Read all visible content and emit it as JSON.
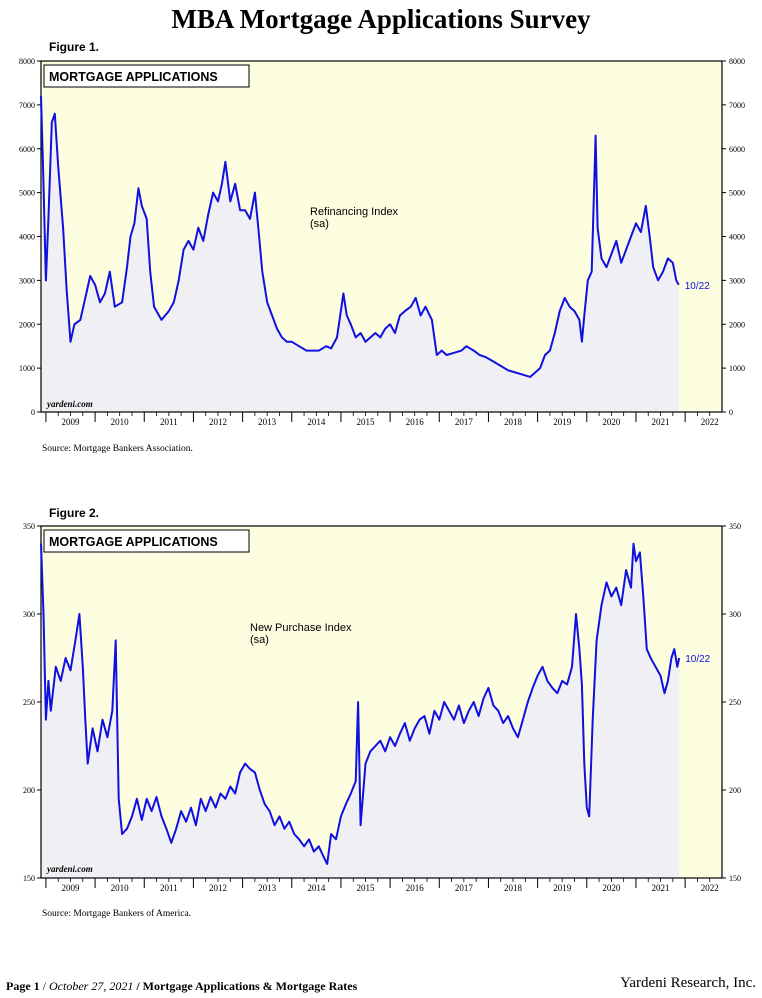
{
  "page_title": "MBA Mortgage Applications Survey",
  "footer": {
    "page": "Page 1",
    "date": "October 27, 2021",
    "doc_title": "Mortgage Applications & Mortgage Rates",
    "company": "Yardeni Research, Inc."
  },
  "colors": {
    "line": "#1010e0",
    "plot_bg": "#fdfde0",
    "hist_fill": "#f0f0f4"
  },
  "chart_data": [
    {
      "type": "line",
      "figure_label": "Figure 1.",
      "box_title": "MORTGAGE APPLICATIONS",
      "series_label": "Refinancing Index",
      "series_sub": "(sa)",
      "end_label": "10/22",
      "watermark": "yardeni.com",
      "source": "Source:  Mortgage Bankers Association.",
      "x_range": [
        2008.9,
        2022.75
      ],
      "ylim": [
        0,
        8000
      ],
      "yticks": [
        "0",
        "1000",
        "2000",
        "3000",
        "4000",
        "5000",
        "6000",
        "7000",
        "8000"
      ],
      "xticks": [
        "2009",
        "2010",
        "2011",
        "2012",
        "2013",
        "2014",
        "2015",
        "2016",
        "2017",
        "2018",
        "2019",
        "2020",
        "2021",
        "2022"
      ],
      "points": [
        [
          2008.9,
          7200
        ],
        [
          2008.95,
          5200
        ],
        [
          2009.0,
          3000
        ],
        [
          2009.05,
          4400
        ],
        [
          2009.12,
          6600
        ],
        [
          2009.18,
          6800
        ],
        [
          2009.25,
          5600
        ],
        [
          2009.35,
          4200
        ],
        [
          2009.42,
          2800
        ],
        [
          2009.5,
          1600
        ],
        [
          2009.58,
          2000
        ],
        [
          2009.7,
          2100
        ],
        [
          2009.8,
          2600
        ],
        [
          2009.9,
          3100
        ],
        [
          2010.0,
          2900
        ],
        [
          2010.1,
          2500
        ],
        [
          2010.2,
          2700
        ],
        [
          2010.3,
          3200
        ],
        [
          2010.4,
          2400
        ],
        [
          2010.55,
          2500
        ],
        [
          2010.65,
          3300
        ],
        [
          2010.72,
          4000
        ],
        [
          2010.8,
          4300
        ],
        [
          2010.88,
          5100
        ],
        [
          2010.95,
          4700
        ],
        [
          2011.05,
          4400
        ],
        [
          2011.12,
          3200
        ],
        [
          2011.2,
          2400
        ],
        [
          2011.35,
          2100
        ],
        [
          2011.5,
          2300
        ],
        [
          2011.6,
          2500
        ],
        [
          2011.7,
          3000
        ],
        [
          2011.8,
          3700
        ],
        [
          2011.9,
          3900
        ],
        [
          2012.0,
          3700
        ],
        [
          2012.1,
          4200
        ],
        [
          2012.2,
          3900
        ],
        [
          2012.3,
          4500
        ],
        [
          2012.4,
          5000
        ],
        [
          2012.5,
          4800
        ],
        [
          2012.58,
          5200
        ],
        [
          2012.65,
          5700
        ],
        [
          2012.75,
          4800
        ],
        [
          2012.85,
          5200
        ],
        [
          2012.95,
          4600
        ],
        [
          2013.05,
          4600
        ],
        [
          2013.15,
          4400
        ],
        [
          2013.25,
          5000
        ],
        [
          2013.32,
          4200
        ],
        [
          2013.4,
          3200
        ],
        [
          2013.5,
          2500
        ],
        [
          2013.6,
          2200
        ],
        [
          2013.7,
          1900
        ],
        [
          2013.8,
          1700
        ],
        [
          2013.9,
          1600
        ],
        [
          2014.0,
          1600
        ],
        [
          2014.15,
          1500
        ],
        [
          2014.3,
          1400
        ],
        [
          2014.45,
          1400
        ],
        [
          2014.55,
          1400
        ],
        [
          2014.7,
          1500
        ],
        [
          2014.8,
          1450
        ],
        [
          2014.92,
          1700
        ],
        [
          2015.05,
          2700
        ],
        [
          2015.12,
          2200
        ],
        [
          2015.2,
          2000
        ],
        [
          2015.3,
          1700
        ],
        [
          2015.4,
          1800
        ],
        [
          2015.5,
          1600
        ],
        [
          2015.6,
          1700
        ],
        [
          2015.7,
          1800
        ],
        [
          2015.8,
          1700
        ],
        [
          2015.9,
          1900
        ],
        [
          2016.0,
          2000
        ],
        [
          2016.1,
          1800
        ],
        [
          2016.2,
          2200
        ],
        [
          2016.3,
          2300
        ],
        [
          2016.42,
          2400
        ],
        [
          2016.52,
          2600
        ],
        [
          2016.62,
          2200
        ],
        [
          2016.72,
          2400
        ],
        [
          2016.85,
          2100
        ],
        [
          2016.95,
          1300
        ],
        [
          2017.05,
          1400
        ],
        [
          2017.15,
          1300
        ],
        [
          2017.3,
          1350
        ],
        [
          2017.45,
          1400
        ],
        [
          2017.55,
          1500
        ],
        [
          2017.7,
          1400
        ],
        [
          2017.82,
          1300
        ],
        [
          2017.95,
          1250
        ],
        [
          2018.1,
          1150
        ],
        [
          2018.25,
          1050
        ],
        [
          2018.4,
          950
        ],
        [
          2018.55,
          900
        ],
        [
          2018.7,
          850
        ],
        [
          2018.85,
          800
        ],
        [
          2018.95,
          900
        ],
        [
          2019.05,
          1000
        ],
        [
          2019.15,
          1300
        ],
        [
          2019.25,
          1400
        ],
        [
          2019.35,
          1800
        ],
        [
          2019.45,
          2300
        ],
        [
          2019.55,
          2600
        ],
        [
          2019.65,
          2400
        ],
        [
          2019.75,
          2300
        ],
        [
          2019.85,
          2100
        ],
        [
          2019.9,
          1600
        ],
        [
          2019.95,
          2200
        ],
        [
          2020.02,
          3000
        ],
        [
          2020.1,
          3200
        ],
        [
          2020.18,
          6300
        ],
        [
          2020.22,
          4200
        ],
        [
          2020.3,
          3500
        ],
        [
          2020.4,
          3300
        ],
        [
          2020.5,
          3600
        ],
        [
          2020.6,
          3900
        ],
        [
          2020.7,
          3400
        ],
        [
          2020.8,
          3700
        ],
        [
          2020.9,
          4000
        ],
        [
          2021.0,
          4300
        ],
        [
          2021.1,
          4100
        ],
        [
          2021.2,
          4700
        ],
        [
          2021.28,
          4000
        ],
        [
          2021.35,
          3300
        ],
        [
          2021.45,
          3000
        ],
        [
          2021.55,
          3200
        ],
        [
          2021.65,
          3500
        ],
        [
          2021.75,
          3400
        ],
        [
          2021.82,
          3000
        ],
        [
          2021.87,
          2900
        ]
      ]
    },
    {
      "type": "line",
      "figure_label": "Figure 2.",
      "box_title": "MORTGAGE APPLICATIONS",
      "series_label": "New Purchase Index",
      "series_sub": "(sa)",
      "end_label": "10/22",
      "watermark": "yardeni.com",
      "source": "Source: Mortgage Bankers of America.",
      "x_range": [
        2008.9,
        2022.75
      ],
      "ylim": [
        150,
        350
      ],
      "yticks": [
        "150",
        "200",
        "250",
        "300",
        "350"
      ],
      "xticks": [
        "2009",
        "2010",
        "2011",
        "2012",
        "2013",
        "2014",
        "2015",
        "2016",
        "2017",
        "2018",
        "2019",
        "2020",
        "2021",
        "2022"
      ],
      "points": [
        [
          2008.9,
          340
        ],
        [
          2008.95,
          300
        ],
        [
          2009.0,
          240
        ],
        [
          2009.05,
          262
        ],
        [
          2009.1,
          245
        ],
        [
          2009.2,
          270
        ],
        [
          2009.3,
          262
        ],
        [
          2009.4,
          275
        ],
        [
          2009.5,
          268
        ],
        [
          2009.6,
          285
        ],
        [
          2009.68,
          300
        ],
        [
          2009.75,
          270
        ],
        [
          2009.8,
          240
        ],
        [
          2009.85,
          215
        ],
        [
          2009.95,
          235
        ],
        [
          2010.05,
          222
        ],
        [
          2010.15,
          240
        ],
        [
          2010.25,
          230
        ],
        [
          2010.35,
          245
        ],
        [
          2010.42,
          285
        ],
        [
          2010.48,
          195
        ],
        [
          2010.55,
          175
        ],
        [
          2010.65,
          178
        ],
        [
          2010.75,
          185
        ],
        [
          2010.85,
          195
        ],
        [
          2010.95,
          183
        ],
        [
          2011.05,
          195
        ],
        [
          2011.15,
          188
        ],
        [
          2011.25,
          196
        ],
        [
          2011.35,
          185
        ],
        [
          2011.45,
          178
        ],
        [
          2011.55,
          170
        ],
        [
          2011.65,
          178
        ],
        [
          2011.75,
          188
        ],
        [
          2011.85,
          182
        ],
        [
          2011.95,
          190
        ],
        [
          2012.05,
          180
        ],
        [
          2012.15,
          195
        ],
        [
          2012.25,
          188
        ],
        [
          2012.35,
          196
        ],
        [
          2012.45,
          190
        ],
        [
          2012.55,
          198
        ],
        [
          2012.65,
          195
        ],
        [
          2012.75,
          202
        ],
        [
          2012.85,
          198
        ],
        [
          2012.95,
          210
        ],
        [
          2013.05,
          215
        ],
        [
          2013.15,
          212
        ],
        [
          2013.25,
          210
        ],
        [
          2013.35,
          200
        ],
        [
          2013.45,
          192
        ],
        [
          2013.55,
          188
        ],
        [
          2013.65,
          180
        ],
        [
          2013.75,
          185
        ],
        [
          2013.85,
          178
        ],
        [
          2013.95,
          182
        ],
        [
          2014.05,
          175
        ],
        [
          2014.15,
          172
        ],
        [
          2014.25,
          168
        ],
        [
          2014.35,
          172
        ],
        [
          2014.45,
          165
        ],
        [
          2014.55,
          168
        ],
        [
          2014.65,
          162
        ],
        [
          2014.72,
          158
        ],
        [
          2014.8,
          175
        ],
        [
          2014.9,
          172
        ],
        [
          2015.0,
          185
        ],
        [
          2015.1,
          192
        ],
        [
          2015.2,
          198
        ],
        [
          2015.3,
          205
        ],
        [
          2015.35,
          250
        ],
        [
          2015.4,
          180
        ],
        [
          2015.5,
          215
        ],
        [
          2015.6,
          222
        ],
        [
          2015.7,
          225
        ],
        [
          2015.8,
          228
        ],
        [
          2015.9,
          222
        ],
        [
          2016.0,
          230
        ],
        [
          2016.1,
          225
        ],
        [
          2016.2,
          232
        ],
        [
          2016.3,
          238
        ],
        [
          2016.4,
          228
        ],
        [
          2016.5,
          235
        ],
        [
          2016.6,
          240
        ],
        [
          2016.7,
          242
        ],
        [
          2016.8,
          232
        ],
        [
          2016.9,
          245
        ],
        [
          2017.0,
          240
        ],
        [
          2017.1,
          250
        ],
        [
          2017.2,
          245
        ],
        [
          2017.3,
          240
        ],
        [
          2017.4,
          248
        ],
        [
          2017.5,
          238
        ],
        [
          2017.6,
          245
        ],
        [
          2017.7,
          250
        ],
        [
          2017.8,
          242
        ],
        [
          2017.9,
          252
        ],
        [
          2018.0,
          258
        ],
        [
          2018.1,
          248
        ],
        [
          2018.2,
          245
        ],
        [
          2018.3,
          238
        ],
        [
          2018.4,
          242
        ],
        [
          2018.5,
          235
        ],
        [
          2018.6,
          230
        ],
        [
          2018.7,
          240
        ],
        [
          2018.8,
          250
        ],
        [
          2018.9,
          258
        ],
        [
          2019.0,
          265
        ],
        [
          2019.1,
          270
        ],
        [
          2019.2,
          262
        ],
        [
          2019.3,
          258
        ],
        [
          2019.4,
          255
        ],
        [
          2019.5,
          262
        ],
        [
          2019.6,
          260
        ],
        [
          2019.7,
          270
        ],
        [
          2019.78,
          300
        ],
        [
          2019.85,
          280
        ],
        [
          2019.9,
          260
        ],
        [
          2019.95,
          215
        ],
        [
          2020.0,
          190
        ],
        [
          2020.05,
          185
        ],
        [
          2020.12,
          240
        ],
        [
          2020.2,
          285
        ],
        [
          2020.3,
          305
        ],
        [
          2020.4,
          318
        ],
        [
          2020.5,
          310
        ],
        [
          2020.6,
          315
        ],
        [
          2020.7,
          305
        ],
        [
          2020.8,
          325
        ],
        [
          2020.9,
          315
        ],
        [
          2020.95,
          340
        ],
        [
          2021.0,
          330
        ],
        [
          2021.08,
          335
        ],
        [
          2021.15,
          310
        ],
        [
          2021.22,
          280
        ],
        [
          2021.3,
          275
        ],
        [
          2021.4,
          270
        ],
        [
          2021.5,
          265
        ],
        [
          2021.58,
          255
        ],
        [
          2021.65,
          262
        ],
        [
          2021.72,
          275
        ],
        [
          2021.78,
          280
        ],
        [
          2021.84,
          270
        ],
        [
          2021.88,
          275
        ]
      ]
    }
  ]
}
